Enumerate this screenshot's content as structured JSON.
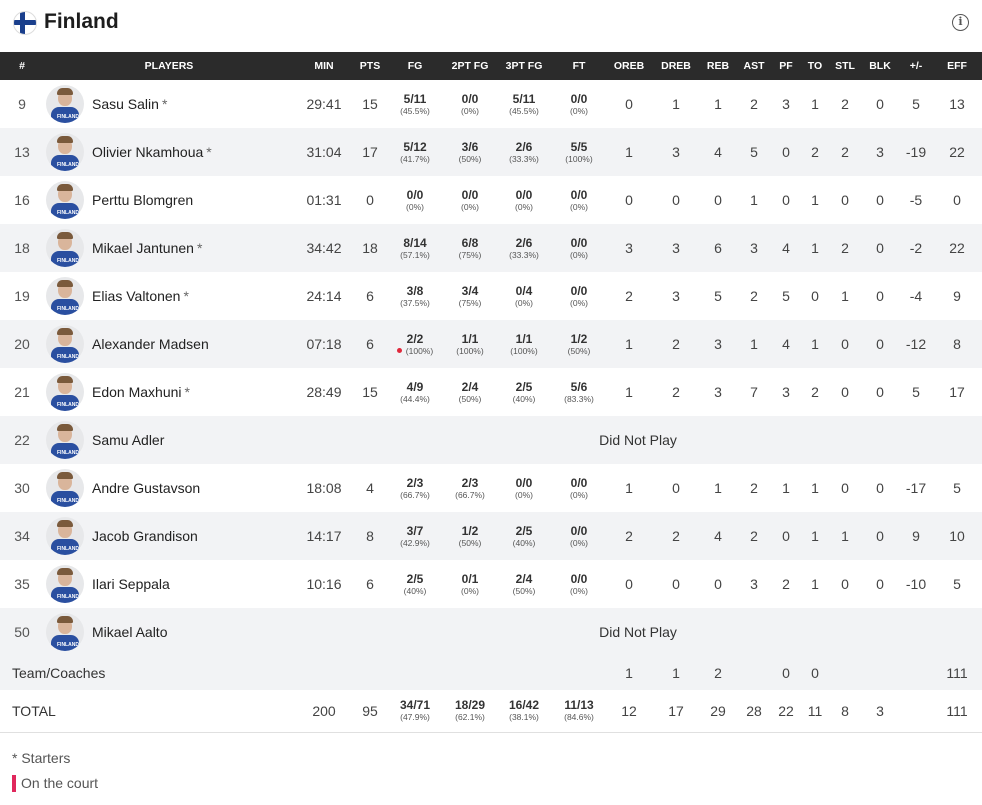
{
  "team": {
    "name": "Finland",
    "flag": "finland-flag",
    "info_icon": "i"
  },
  "columns": [
    "#",
    "PLAYERS",
    "MIN",
    "PTS",
    "FG",
    "2PT FG",
    "3PT FG",
    "FT",
    "OREB",
    "DREB",
    "REB",
    "AST",
    "PF",
    "TO",
    "STL",
    "BLK",
    "+/-",
    "EFF"
  ],
  "players": [
    {
      "num": "9",
      "name": "Sasu Salin",
      "starter": "*",
      "min": "29:41",
      "pts": "15",
      "fg": "5/11",
      "fg_pct": "(45.5%)",
      "fg2": "0/0",
      "fg2_pct": "(0%)",
      "fg3": "5/11",
      "fg3_pct": "(45.5%)",
      "ft": "0/0",
      "ft_pct": "(0%)",
      "oreb": "0",
      "dreb": "1",
      "reb": "1",
      "ast": "2",
      "pf": "3",
      "to": "1",
      "stl": "2",
      "blk": "0",
      "pm": "5",
      "eff": "13"
    },
    {
      "num": "13",
      "name": "Olivier Nkamhoua",
      "starter": "*",
      "min": "31:04",
      "pts": "17",
      "fg": "5/12",
      "fg_pct": "(41.7%)",
      "fg2": "3/6",
      "fg2_pct": "(50%)",
      "fg3": "2/6",
      "fg3_pct": "(33.3%)",
      "ft": "5/5",
      "ft_pct": "(100%)",
      "oreb": "1",
      "dreb": "3",
      "reb": "4",
      "ast": "5",
      "pf": "0",
      "to": "2",
      "stl": "2",
      "blk": "3",
      "pm": "-19",
      "eff": "22"
    },
    {
      "num": "16",
      "name": "Perttu Blomgren",
      "starter": "",
      "min": "01:31",
      "pts": "0",
      "fg": "0/0",
      "fg_pct": "(0%)",
      "fg2": "0/0",
      "fg2_pct": "(0%)",
      "fg3": "0/0",
      "fg3_pct": "(0%)",
      "ft": "0/0",
      "ft_pct": "(0%)",
      "oreb": "0",
      "dreb": "0",
      "reb": "0",
      "ast": "1",
      "pf": "0",
      "to": "1",
      "stl": "0",
      "blk": "0",
      "pm": "-5",
      "eff": "0"
    },
    {
      "num": "18",
      "name": "Mikael Jantunen",
      "starter": "*",
      "min": "34:42",
      "pts": "18",
      "fg": "8/14",
      "fg_pct": "(57.1%)",
      "fg2": "6/8",
      "fg2_pct": "(75%)",
      "fg3": "2/6",
      "fg3_pct": "(33.3%)",
      "ft": "0/0",
      "ft_pct": "(0%)",
      "oreb": "3",
      "dreb": "3",
      "reb": "6",
      "ast": "3",
      "pf": "4",
      "to": "1",
      "stl": "2",
      "blk": "0",
      "pm": "-2",
      "eff": "22"
    },
    {
      "num": "19",
      "name": "Elias Valtonen",
      "starter": "*",
      "min": "24:14",
      "pts": "6",
      "fg": "3/8",
      "fg_pct": "(37.5%)",
      "fg2": "3/4",
      "fg2_pct": "(75%)",
      "fg3": "0/4",
      "fg3_pct": "(0%)",
      "ft": "0/0",
      "ft_pct": "(0%)",
      "oreb": "2",
      "dreb": "3",
      "reb": "5",
      "ast": "2",
      "pf": "5",
      "to": "0",
      "stl": "1",
      "blk": "0",
      "pm": "-4",
      "eff": "9"
    },
    {
      "num": "20",
      "name": "Alexander Madsen",
      "starter": "",
      "oncourt": true,
      "min": "07:18",
      "pts": "6",
      "fg": "2/2",
      "fg_pct": "(100%)",
      "fg2": "1/1",
      "fg2_pct": "(100%)",
      "fg3": "1/1",
      "fg3_pct": "(100%)",
      "ft": "1/2",
      "ft_pct": "(50%)",
      "oreb": "1",
      "dreb": "2",
      "reb": "3",
      "ast": "1",
      "pf": "4",
      "to": "1",
      "stl": "0",
      "blk": "0",
      "pm": "-12",
      "eff": "8"
    },
    {
      "num": "21",
      "name": "Edon Maxhuni",
      "starter": "*",
      "min": "28:49",
      "pts": "15",
      "fg": "4/9",
      "fg_pct": "(44.4%)",
      "fg2": "2/4",
      "fg2_pct": "(50%)",
      "fg3": "2/5",
      "fg3_pct": "(40%)",
      "ft": "5/6",
      "ft_pct": "(83.3%)",
      "oreb": "1",
      "dreb": "2",
      "reb": "3",
      "ast": "7",
      "pf": "3",
      "to": "2",
      "stl": "0",
      "blk": "0",
      "pm": "5",
      "eff": "17"
    },
    {
      "num": "22",
      "name": "Samu Adler",
      "starter": "",
      "dnp": "Did Not Play"
    },
    {
      "num": "30",
      "name": "Andre Gustavson",
      "starter": "",
      "min": "18:08",
      "pts": "4",
      "fg": "2/3",
      "fg_pct": "(66.7%)",
      "fg2": "2/3",
      "fg2_pct": "(66.7%)",
      "fg3": "0/0",
      "fg3_pct": "(0%)",
      "ft": "0/0",
      "ft_pct": "(0%)",
      "oreb": "1",
      "dreb": "0",
      "reb": "1",
      "ast": "2",
      "pf": "1",
      "to": "1",
      "stl": "0",
      "blk": "0",
      "pm": "-17",
      "eff": "5"
    },
    {
      "num": "34",
      "name": "Jacob Grandison",
      "starter": "",
      "min": "14:17",
      "pts": "8",
      "fg": "3/7",
      "fg_pct": "(42.9%)",
      "fg2": "1/2",
      "fg2_pct": "(50%)",
      "fg3": "2/5",
      "fg3_pct": "(40%)",
      "ft": "0/0",
      "ft_pct": "(0%)",
      "oreb": "2",
      "dreb": "2",
      "reb": "4",
      "ast": "2",
      "pf": "0",
      "to": "1",
      "stl": "1",
      "blk": "0",
      "pm": "9",
      "eff": "10"
    },
    {
      "num": "35",
      "name": "Ilari Seppala",
      "starter": "",
      "min": "10:16",
      "pts": "6",
      "fg": "2/5",
      "fg_pct": "(40%)",
      "fg2": "0/1",
      "fg2_pct": "(0%)",
      "fg3": "2/4",
      "fg3_pct": "(50%)",
      "ft": "0/0",
      "ft_pct": "(0%)",
      "oreb": "0",
      "dreb": "0",
      "reb": "0",
      "ast": "3",
      "pf": "2",
      "to": "1",
      "stl": "0",
      "blk": "0",
      "pm": "-10",
      "eff": "5"
    },
    {
      "num": "50",
      "name": "Mikael Aalto",
      "starter": "",
      "dnp": "Did Not Play"
    }
  ],
  "team_coaches": {
    "label": "Team/Coaches",
    "oreb": "1",
    "dreb": "1",
    "reb": "2",
    "pf": "0",
    "to": "0",
    "eff": "111"
  },
  "total": {
    "label": "TOTAL",
    "min": "200",
    "pts": "95",
    "fg": "34/71",
    "fg_pct": "(47.9%)",
    "fg2": "18/29",
    "fg2_pct": "(62.1%)",
    "fg3": "16/42",
    "fg3_pct": "(38.1%)",
    "ft": "11/13",
    "ft_pct": "(84.6%)",
    "oreb": "12",
    "dreb": "17",
    "reb": "29",
    "ast": "28",
    "pf": "22",
    "to": "11",
    "stl": "8",
    "blk": "3",
    "eff": "111"
  },
  "legend": {
    "starters": "* Starters",
    "on_court": "On the court"
  },
  "colors": {
    "header_bg": "#2b2b2b",
    "jersey": "#2a4fa0",
    "on_court": "#e0285c",
    "alt_row": "#f2f3f5"
  }
}
